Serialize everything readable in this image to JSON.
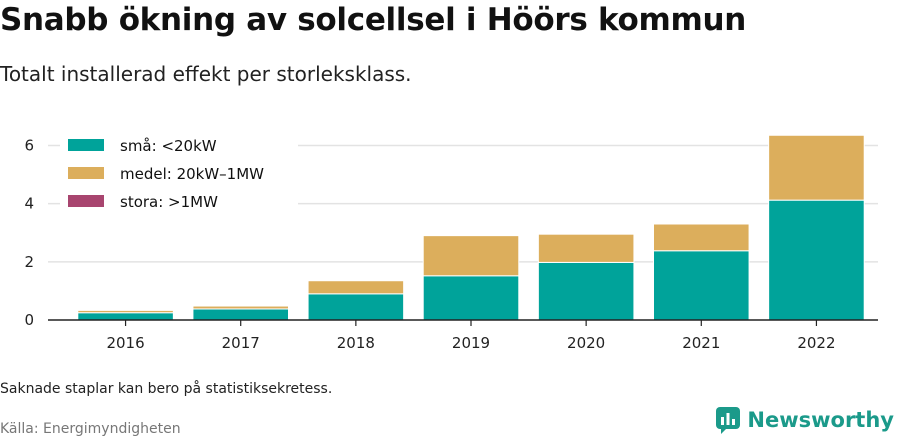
{
  "title": "Snabb ökning av solcellsel i Höörs kommun",
  "subtitle": "Totalt installerad effekt per storleksklass.",
  "note": "Saknade staplar kan bero på statistiksekretess.",
  "source": "Källa: Energimyndigheten",
  "brand": {
    "name": "Newsworthy",
    "icon": "newsworthy-logo-icon",
    "color": "#1b9a8a"
  },
  "chart_data": {
    "type": "bar",
    "stacked": true,
    "categories": [
      "2016",
      "2017",
      "2018",
      "2019",
      "2020",
      "2021",
      "2022"
    ],
    "series": [
      {
        "name": "små: <20kW",
        "color": "#00a39a",
        "values": [
          0.25,
          0.38,
          0.9,
          1.52,
          1.98,
          2.38,
          4.12
        ]
      },
      {
        "name": "medel: 20kW–1MW",
        "color": "#dcae5c",
        "values": [
          0.08,
          0.1,
          0.45,
          1.38,
          0.97,
          0.92,
          2.23
        ]
      },
      {
        "name": "stora: >1MW",
        "color": "#a8456f",
        "values": [
          0,
          0,
          0,
          0,
          0,
          0,
          0
        ]
      }
    ],
    "ylim": [
      0,
      6.6
    ],
    "yticks": [
      0,
      2,
      4,
      6
    ],
    "xlabel": "",
    "ylabel": "",
    "grid": true,
    "legend_position": "top-left"
  }
}
